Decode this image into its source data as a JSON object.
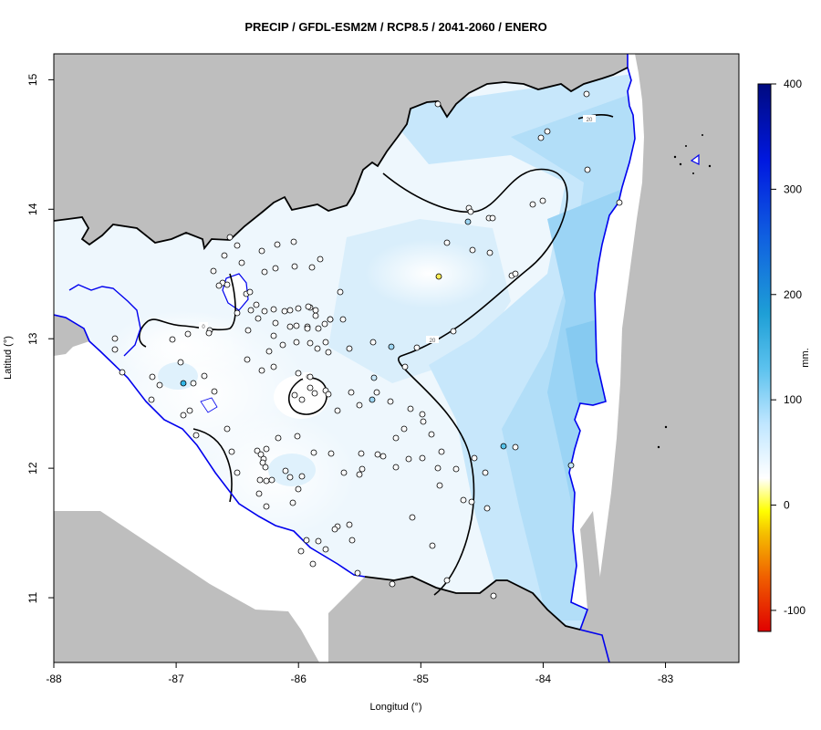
{
  "title": "PRECIP / GFDL-ESM2M / RCP8.5 / 2041-2060 / ENERO",
  "map": {
    "xlabel": "Longitud (°)",
    "ylabel": "Latitud (°)",
    "xlim": [
      -88,
      -82.4
    ],
    "ylim": [
      10.5,
      15.2
    ],
    "xticks": [
      "-88",
      "-87",
      "-86",
      "-85",
      "-84",
      "-83"
    ],
    "yticks": [
      "11",
      "12",
      "13",
      "14",
      "15"
    ],
    "contour_labels": [
      "20",
      "20",
      "0",
      "0"
    ],
    "land_color": "#bebebe",
    "border_color": "#000000",
    "coast_color": "#0000ee"
  },
  "legend": {
    "unit": "mm.",
    "ticks": [
      "400",
      "300",
      "200",
      "100",
      "0",
      "-100"
    ],
    "range": [
      -120,
      400
    ],
    "colors": [
      "#e00000",
      "#f06000",
      "#f5c000",
      "#ffff00",
      "#ffffff",
      "#bfe6ff",
      "#5cc2ee",
      "#1e9fd6",
      "#1060e0",
      "#0018e0",
      "#000a80"
    ]
  }
}
